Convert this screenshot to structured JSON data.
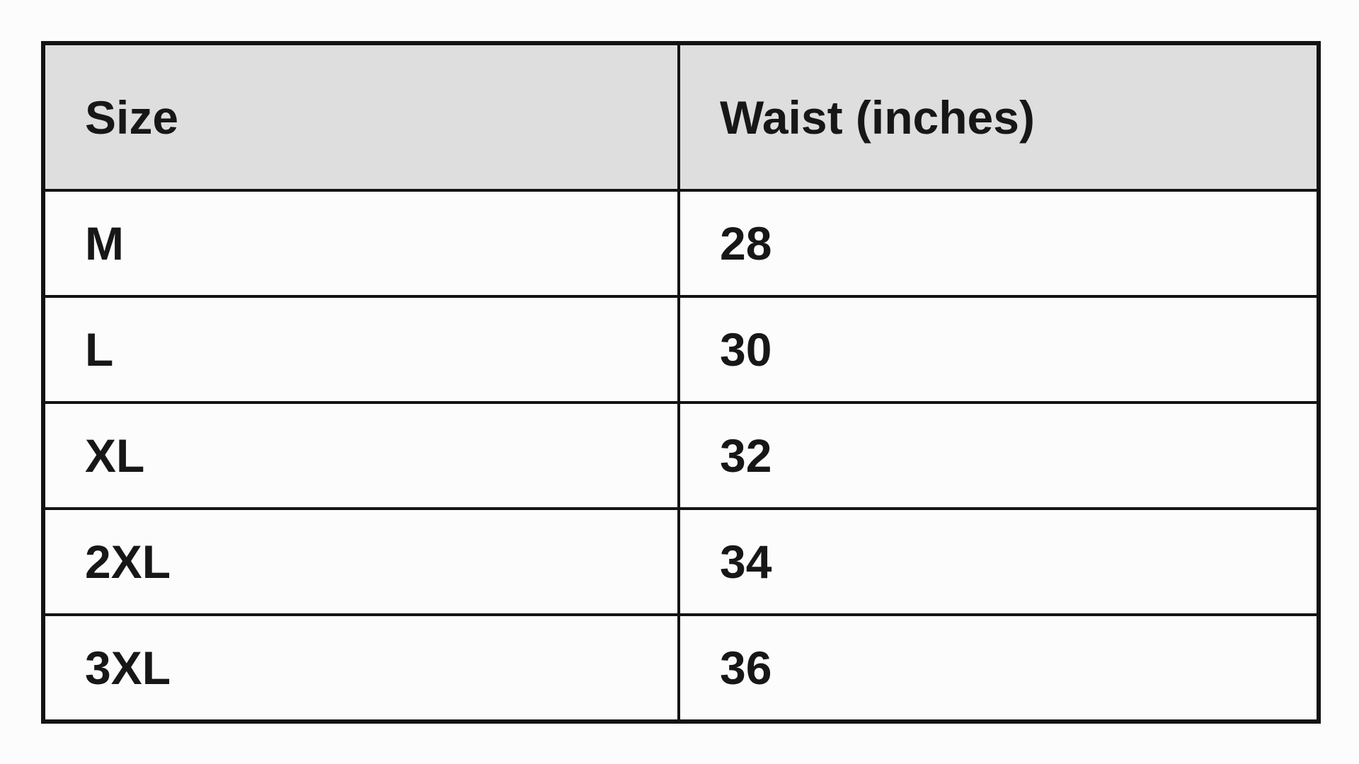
{
  "chart_data": {
    "type": "table",
    "columns": [
      "Size",
      "Waist (inches)"
    ],
    "rows": [
      [
        "M",
        "28"
      ],
      [
        "L",
        "30"
      ],
      [
        "XL",
        "32"
      ],
      [
        "2XL",
        "34"
      ],
      [
        "3XL",
        "36"
      ]
    ],
    "legend": "none",
    "grid": "full table borders",
    "header_style": "gray background, bold black text"
  },
  "table": {
    "headers": {
      "size": "Size",
      "waist": "Waist (inches)"
    },
    "rows": [
      {
        "size": "M",
        "waist": "28"
      },
      {
        "size": "L",
        "waist": "30"
      },
      {
        "size": "XL",
        "waist": "32"
      },
      {
        "size": "2XL",
        "waist": "34"
      },
      {
        "size": "3XL",
        "waist": "36"
      }
    ]
  },
  "colors": {
    "page_background": "#fcfcfc",
    "header_background": "#dedede",
    "cell_background": "#fcfcfc",
    "border": "#131313",
    "text": "#171717"
  }
}
